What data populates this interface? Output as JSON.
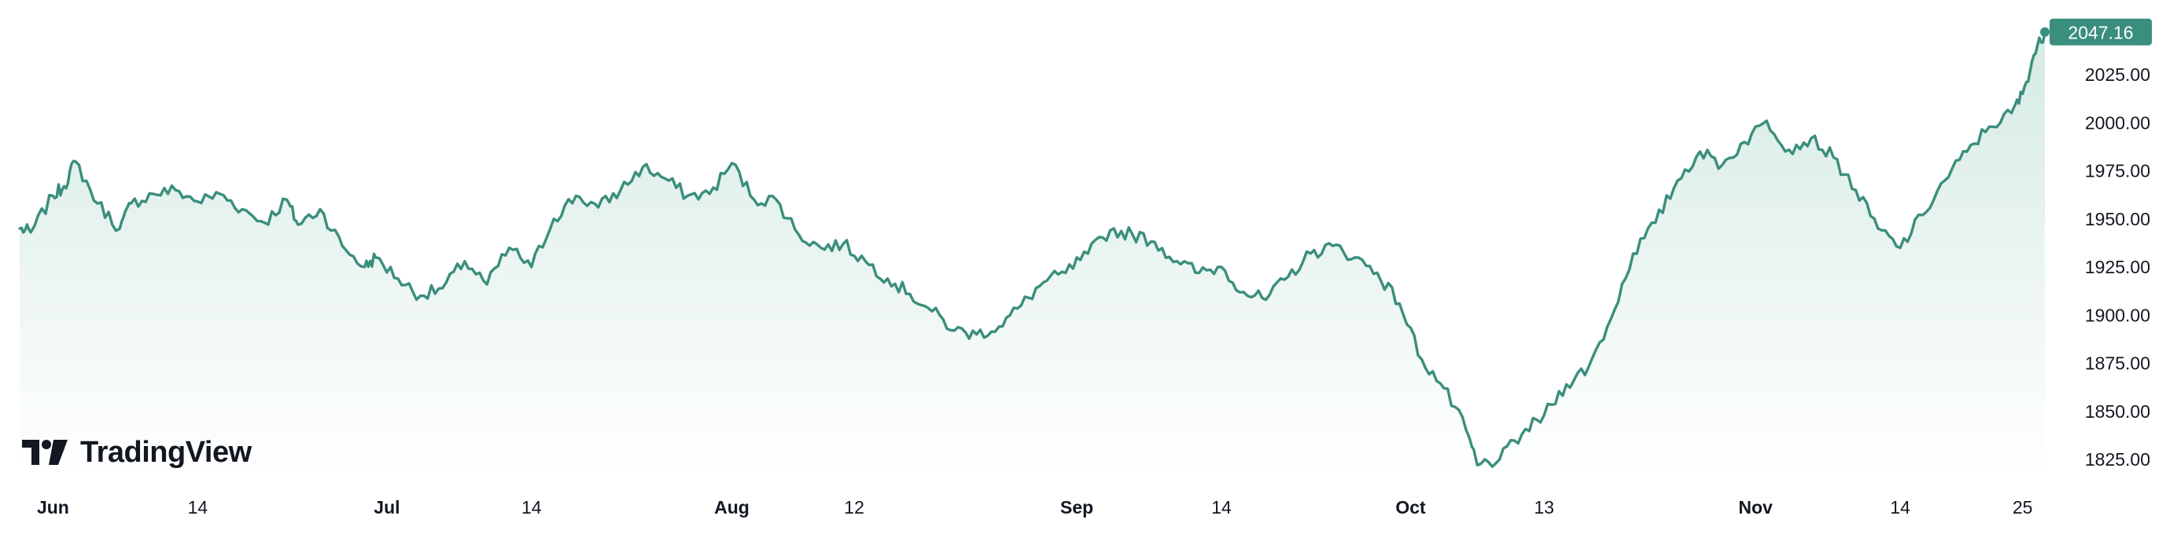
{
  "brand": {
    "name": "TradingView",
    "icon": "tradingview-logo-icon"
  },
  "colors": {
    "line": "#3a8e7d",
    "fill_top": "#d5eae3",
    "fill_bottom": "#ffffff",
    "badge": "#3a8e7d",
    "text": "#131722"
  },
  "last_price_label": "2047.16",
  "chart_data": {
    "type": "area",
    "title": "",
    "xlabel": "",
    "ylabel": "",
    "ylim": [
      1815,
      2050
    ],
    "grid": false,
    "y_axis_position": "right",
    "y_ticks": [
      "2025.00",
      "2000.00",
      "1975.00",
      "1950.00",
      "1925.00",
      "1900.00",
      "1875.00",
      "1850.00",
      "1825.00"
    ],
    "x_ticks": [
      {
        "label": "Jun",
        "date": "2023-06-01",
        "month": true
      },
      {
        "label": "14",
        "date": "2023-06-14",
        "month": false
      },
      {
        "label": "Jul",
        "date": "2023-07-01",
        "month": true
      },
      {
        "label": "14",
        "date": "2023-07-14",
        "month": false
      },
      {
        "label": "Aug",
        "date": "2023-08-01",
        "month": true
      },
      {
        "label": "12",
        "date": "2023-08-12",
        "month": false
      },
      {
        "label": "Sep",
        "date": "2023-09-01",
        "month": true
      },
      {
        "label": "14",
        "date": "2023-09-14",
        "month": false
      },
      {
        "label": "Oct",
        "date": "2023-10-01",
        "month": true
      },
      {
        "label": "13",
        "date": "2023-10-13",
        "month": false
      },
      {
        "label": "Nov",
        "date": "2023-11-01",
        "month": true
      },
      {
        "label": "14",
        "date": "2023-11-14",
        "month": false
      },
      {
        "label": "25",
        "date": "2023-11-25",
        "month": false
      }
    ],
    "series": [
      {
        "x": [
          "2023-05-29",
          "2023-05-30",
          "2023-06-01",
          "2023-06-02",
          "2023-06-03",
          "2023-06-05",
          "2023-06-07",
          "2023-06-08",
          "2023-06-10",
          "2023-06-12",
          "2023-06-14",
          "2023-06-16",
          "2023-06-18",
          "2023-06-20",
          "2023-06-22",
          "2023-06-23",
          "2023-06-25",
          "2023-06-27",
          "2023-06-29",
          "2023-06-30",
          "2023-07-02",
          "2023-07-04",
          "2023-07-06",
          "2023-07-08",
          "2023-07-10",
          "2023-07-12",
          "2023-07-14",
          "2023-07-16",
          "2023-07-18",
          "2023-07-20",
          "2023-07-22",
          "2023-07-24",
          "2023-07-26",
          "2023-07-28",
          "2023-07-30",
          "2023-08-01",
          "2023-08-03",
          "2023-08-05",
          "2023-08-07",
          "2023-08-09",
          "2023-08-11",
          "2023-08-13",
          "2023-08-15",
          "2023-08-17",
          "2023-08-19",
          "2023-08-21",
          "2023-08-23",
          "2023-08-25",
          "2023-08-27",
          "2023-08-29",
          "2023-08-31",
          "2023-09-02",
          "2023-09-04",
          "2023-09-06",
          "2023-09-08",
          "2023-09-10",
          "2023-09-12",
          "2023-09-14",
          "2023-09-16",
          "2023-09-18",
          "2023-09-20",
          "2023-09-22",
          "2023-09-24",
          "2023-09-26",
          "2023-09-28",
          "2023-09-30",
          "2023-10-02",
          "2023-10-04",
          "2023-10-06",
          "2023-10-07",
          "2023-10-09",
          "2023-10-11",
          "2023-10-13",
          "2023-10-15",
          "2023-10-17",
          "2023-10-19",
          "2023-10-21",
          "2023-10-23",
          "2023-10-25",
          "2023-10-27",
          "2023-10-29",
          "2023-10-31",
          "2023-11-02",
          "2023-11-04",
          "2023-11-06",
          "2023-11-08",
          "2023-11-10",
          "2023-11-12",
          "2023-11-14",
          "2023-11-16",
          "2023-11-18",
          "2023-11-20",
          "2023-11-22",
          "2023-11-24",
          "2023-11-25",
          "2023-11-26",
          "2023-11-27"
        ],
        "y": [
          1945,
          1943,
          1962,
          1967,
          1980,
          1958,
          1945,
          1958,
          1963,
          1965,
          1959,
          1963,
          1955,
          1948,
          1960,
          1947,
          1955,
          1936,
          1925,
          1930,
          1919,
          1910,
          1914,
          1928,
          1916,
          1935,
          1925,
          1950,
          1962,
          1956,
          1965,
          1977,
          1971,
          1962,
          1963,
          1979,
          1960,
          1960,
          1942,
          1935,
          1937,
          1928,
          1919,
          1911,
          1902,
          1892,
          1890,
          1894,
          1905,
          1917,
          1922,
          1932,
          1944,
          1942,
          1938,
          1928,
          1922,
          1925,
          1912,
          1908,
          1920,
          1932,
          1936,
          1930,
          1922,
          1906,
          1877,
          1862,
          1840,
          1822,
          1825,
          1838,
          1848,
          1864,
          1873,
          1898,
          1932,
          1948,
          1970,
          1985,
          1978,
          1990,
          2001,
          1986,
          1992,
          1982,
          1965,
          1945,
          1935,
          1952,
          1970,
          1985,
          1998,
          2005,
          2015,
          2035,
          2047.16
        ]
      }
    ]
  }
}
